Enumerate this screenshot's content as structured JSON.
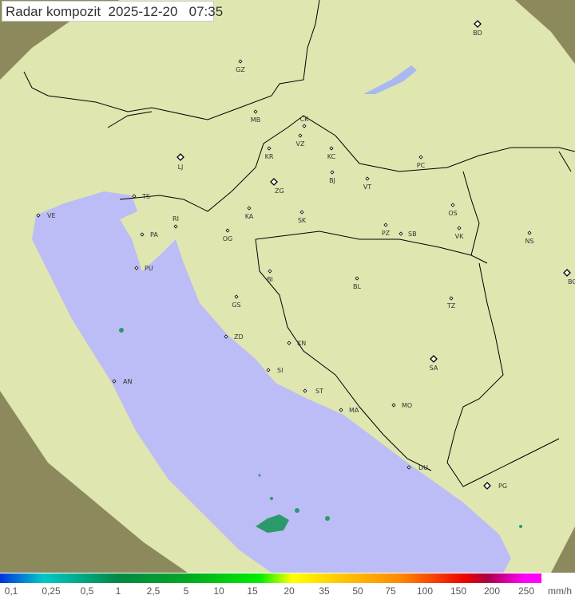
{
  "title": "Radar kompozit  2025-12-20   07:35",
  "legend": {
    "unit": "mm/h",
    "values": [
      "0,1",
      "0,25",
      "0,5",
      "1",
      "2,5",
      "5",
      "10",
      "15",
      "20",
      "35",
      "50",
      "75",
      "100",
      "150",
      "200",
      "250"
    ]
  },
  "cities": [
    {
      "code": "BD",
      "capital": true
    },
    {
      "code": "GZ"
    },
    {
      "code": "MB"
    },
    {
      "code": "CK"
    },
    {
      "code": "VZ"
    },
    {
      "code": "KC"
    },
    {
      "code": "KR"
    },
    {
      "code": "LJ",
      "capital": true
    },
    {
      "code": "PC"
    },
    {
      "code": "ZG",
      "capital": true
    },
    {
      "code": "BJ"
    },
    {
      "code": "VT"
    },
    {
      "code": "TS"
    },
    {
      "code": "VE"
    },
    {
      "code": "KA"
    },
    {
      "code": "RI"
    },
    {
      "code": "SK"
    },
    {
      "code": "OS"
    },
    {
      "code": "PA"
    },
    {
      "code": "OG"
    },
    {
      "code": "PZ"
    },
    {
      "code": "SB"
    },
    {
      "code": "VK"
    },
    {
      "code": "NS"
    },
    {
      "code": "PU"
    },
    {
      "code": "BI"
    },
    {
      "code": "BG",
      "capital": true
    },
    {
      "code": "BL"
    },
    {
      "code": "GS"
    },
    {
      "code": "TZ"
    },
    {
      "code": "ZD"
    },
    {
      "code": "KN"
    },
    {
      "code": "SA",
      "capital": true
    },
    {
      "code": "SI"
    },
    {
      "code": "AN"
    },
    {
      "code": "ST"
    },
    {
      "code": "MO"
    },
    {
      "code": "MA"
    },
    {
      "code": "DU"
    },
    {
      "code": "PG",
      "capital": true
    }
  ],
  "colors": {
    "sea": "#bcbcf6",
    "coverage": "#dfe6b0",
    "outside": "#8c8a5c",
    "border": "#000000",
    "echo": "#2a9a6a"
  }
}
